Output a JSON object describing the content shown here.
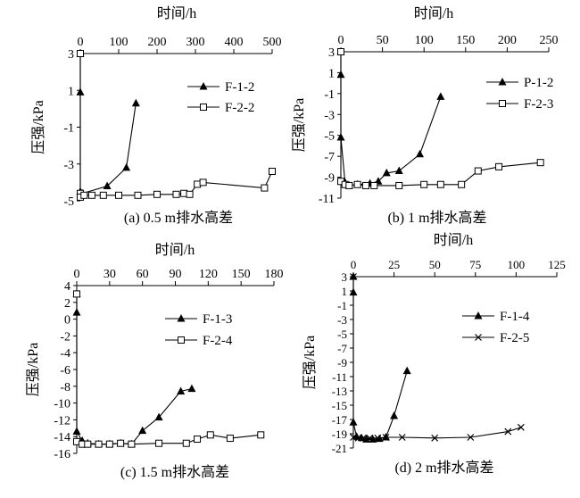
{
  "chart_data": [
    {
      "type": "line",
      "caption": "(a) 0.5 m排水高差",
      "xlabel": "时间/h",
      "ylabel": "压强/kPa",
      "xlim": [
        0,
        500
      ],
      "ylim": [
        -5,
        3
      ],
      "xticks": [
        0,
        100,
        200,
        300,
        400,
        500
      ],
      "yticks": [
        3,
        1,
        -1,
        -3,
        -5
      ],
      "legend_position": "top-right",
      "series": [
        {
          "name": "F-1-2",
          "marker": "triangle",
          "x": [
            0,
            0,
            0,
            5,
            70,
            120,
            145
          ],
          "y": [
            3,
            0.9,
            -4.5,
            -4.6,
            -4.2,
            -3.2,
            0.3
          ]
        },
        {
          "name": "F-2-2",
          "marker": "square",
          "x": [
            0,
            0,
            0,
            10,
            30,
            60,
            100,
            150,
            200,
            250,
            270,
            285,
            305,
            320,
            480,
            500
          ],
          "y": [
            3,
            -4.6,
            -4.8,
            -4.7,
            -4.7,
            -4.7,
            -4.7,
            -4.7,
            -4.65,
            -4.65,
            -4.6,
            -4.65,
            -4.1,
            -4.0,
            -4.3,
            -3.4
          ]
        }
      ]
    },
    {
      "type": "line",
      "caption": "(b) 1 m排水高差",
      "xlabel": "时间/h",
      "ylabel": "压强/kPa",
      "xlim": [
        0,
        250
      ],
      "ylim": [
        -11,
        3
      ],
      "xticks": [
        0,
        50,
        100,
        150,
        200,
        250
      ],
      "yticks": [
        3,
        1,
        -1,
        -3,
        -5,
        -7,
        -9,
        -11
      ],
      "legend_position": "top-right",
      "series": [
        {
          "name": "P-1-2",
          "marker": "triangle",
          "x": [
            0,
            0,
            0,
            5,
            10,
            20,
            35,
            45,
            55,
            70,
            95,
            120
          ],
          "y": [
            3,
            0.8,
            -5.2,
            -9.5,
            -9.8,
            -9.7,
            -9.6,
            -9.4,
            -8.6,
            -8.4,
            -6.8,
            -1.3
          ]
        },
        {
          "name": "F-2-3",
          "marker": "square",
          "x": [
            0,
            0,
            5,
            10,
            20,
            30,
            40,
            70,
            100,
            120,
            145,
            165,
            190,
            240
          ],
          "y": [
            3,
            -9.4,
            -9.7,
            -9.8,
            -9.7,
            -9.8,
            -9.8,
            -9.8,
            -9.7,
            -9.7,
            -9.7,
            -8.4,
            -8.0,
            -7.6
          ]
        }
      ]
    },
    {
      "type": "line",
      "caption": "(c) 1.5 m排水高差",
      "xlabel": "时间/h",
      "ylabel": "压强/kPa",
      "xlim": [
        0,
        180
      ],
      "ylim": [
        -16,
        4
      ],
      "xticks": [
        0,
        30,
        60,
        90,
        120,
        150,
        180
      ],
      "yticks": [
        4,
        2,
        0,
        -2,
        -4,
        -6,
        -8,
        -10,
        -12,
        -14,
        -16
      ],
      "legend_position": "top-right",
      "series": [
        {
          "name": "F-1-3",
          "marker": "triangle",
          "x": [
            0,
            0,
            0,
            5,
            10,
            20,
            30,
            40,
            50,
            60,
            75,
            95,
            105
          ],
          "y": [
            3,
            0.8,
            -13.4,
            -14.5,
            -14.8,
            -14.9,
            -14.9,
            -14.8,
            -14.9,
            -13.3,
            -11.7,
            -8.6,
            -8.3
          ]
        },
        {
          "name": "F-2-4",
          "marker": "square",
          "x": [
            0,
            0,
            5,
            10,
            20,
            30,
            40,
            50,
            75,
            100,
            110,
            122,
            140,
            168
          ],
          "y": [
            3,
            -14.6,
            -14.9,
            -14.9,
            -14.9,
            -14.9,
            -14.8,
            -14.9,
            -14.8,
            -14.8,
            -14.3,
            -13.8,
            -14.2,
            -13.8
          ]
        }
      ]
    },
    {
      "type": "line",
      "caption": "(d) 2 m排水高差",
      "xlabel": "时间/h",
      "ylabel": "压强/kPa",
      "xlim": [
        0,
        125
      ],
      "ylim": [
        -21,
        3
      ],
      "xticks": [
        0,
        25,
        50,
        75,
        100,
        125
      ],
      "yticks": [
        3,
        1,
        -1,
        -3,
        -5,
        -7,
        -9,
        -11,
        -13,
        -15,
        -17,
        -19,
        -21
      ],
      "legend_position": "top-right",
      "series": [
        {
          "name": "F-1-4",
          "marker": "triangle",
          "x": [
            0,
            0,
            0,
            2,
            5,
            8,
            12,
            16,
            20,
            25,
            33
          ],
          "y": [
            3,
            0.8,
            -17.4,
            -19.4,
            -19.6,
            -19.8,
            -19.8,
            -19.7,
            -19.5,
            -16.5,
            -10.2
          ]
        },
        {
          "name": "F-2-5",
          "marker": "x",
          "x": [
            0,
            0,
            3,
            6,
            10,
            15,
            20,
            30,
            50,
            72,
            95,
            103
          ],
          "y": [
            3,
            -19.5,
            -19.6,
            -19.6,
            -19.6,
            -19.6,
            -19.5,
            -19.5,
            -19.6,
            -19.5,
            -18.7,
            -18.1
          ]
        }
      ]
    }
  ]
}
